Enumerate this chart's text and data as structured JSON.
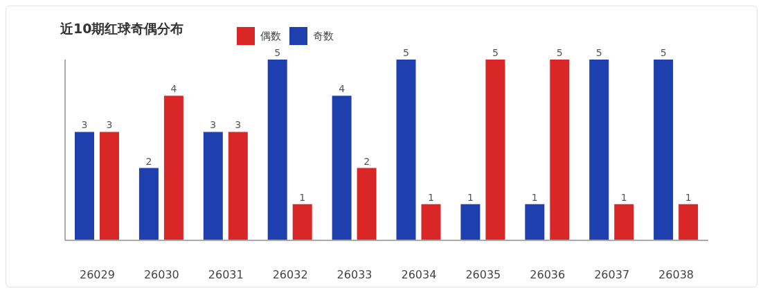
{
  "chart_data": {
    "type": "bar",
    "title": "近10期红球奇偶分布",
    "categories": [
      "26029",
      "26030",
      "26031",
      "26032",
      "26033",
      "26034",
      "26035",
      "26036",
      "26037",
      "26038"
    ],
    "series": [
      {
        "name": "奇数",
        "color": "#1e3fae",
        "values": [
          3,
          2,
          3,
          5,
          4,
          5,
          1,
          1,
          5,
          5
        ]
      },
      {
        "name": "偶数",
        "color": "#d92727",
        "values": [
          3,
          4,
          3,
          1,
          2,
          1,
          5,
          5,
          1,
          1
        ]
      }
    ],
    "data_labels": true,
    "legend": "top",
    "grid": false
  }
}
